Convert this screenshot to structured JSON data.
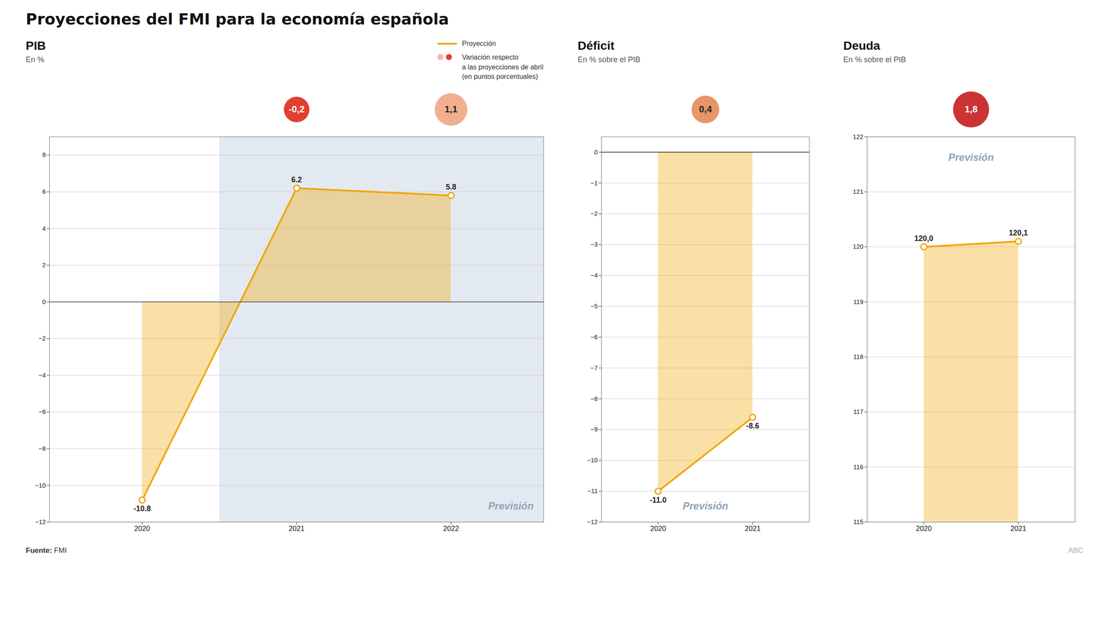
{
  "title": "Proyecciones del FMI para la economía española",
  "source": "Fuente:",
  "source_text": "FMI",
  "credit": "ABC",
  "chart_data": [
    {
      "type": "area",
      "title": "PIB",
      "subtitle": "En %",
      "x": [
        2020,
        2021,
        2022
      ],
      "values": [
        -10.8,
        6.2,
        5.8
      ],
      "color": "#f0a500",
      "marker": "o",
      "xlim": [
        2019.4,
        2022.6
      ],
      "xticks": [
        2020,
        2021,
        2022
      ],
      "ylim": [
        -12,
        9
      ],
      "yticks": [
        -12,
        -10,
        -8,
        -6,
        -4,
        -2,
        0,
        2,
        4,
        6,
        8
      ],
      "grid": true,
      "data_labels": true,
      "annotation": "Previsión",
      "shade_color": "#e3e9f0",
      "bubbles": [
        {
          "x": 2021,
          "value": -0.2,
          "label": "-0,2",
          "color": "#e04030"
        },
        {
          "x": 2022,
          "value": 1.1,
          "label": "1,1",
          "color": "#f0b090"
        }
      ],
      "legend": "top",
      "legend_entries": [
        {
          "label": "Proyección",
          "marker": "line",
          "color": "#f0a500"
        },
        {
          "label": "Variación respecto\na las proyecciones de abril\n(en puntos porcentuales)",
          "marker": "o",
          "colors": [
            "#f5b8a0",
            "#e04030"
          ]
        }
      ]
    },
    {
      "type": "area",
      "title": "Déficit",
      "subtitle": "En % sobre el PIB",
      "x": [
        2020,
        2021
      ],
      "values": [
        -11.0,
        -8.6
      ],
      "value_labels": [
        "-11.0",
        "-8.6"
      ],
      "color": "#f0a500",
      "marker": "o",
      "xlim": [
        2019.4,
        2021.6
      ],
      "xticks": [
        2020,
        2021
      ],
      "ylim": [
        -12,
        0.5
      ],
      "yticks": [
        -12,
        -11,
        -10,
        -9,
        -8,
        -7,
        -6,
        -5,
        -4,
        -3,
        -2,
        -1,
        0
      ],
      "grid": true,
      "data_labels": true,
      "annotation": "Previsión",
      "bubbles": [
        {
          "value": 0.4,
          "label": "0,4",
          "color": "#e8956a"
        }
      ]
    },
    {
      "type": "area",
      "title": "Deuda",
      "subtitle": "En % sobre el PIB",
      "x": [
        2020,
        2021
      ],
      "values": [
        120.0,
        120.1
      ],
      "value_labels": [
        "120,0",
        "120,1"
      ],
      "color": "#f0a500",
      "marker": "o",
      "xlim": [
        2019.4,
        2021.6
      ],
      "xticks": [
        2020,
        2021
      ],
      "ylim": [
        115,
        122
      ],
      "yticks": [
        115,
        116,
        117,
        118,
        119,
        120,
        121,
        122
      ],
      "grid": true,
      "data_labels": true,
      "annotation": "Previsión",
      "bubbles": [
        {
          "value": 1.8,
          "label": "1,8",
          "color": "#cc3333"
        }
      ]
    }
  ]
}
